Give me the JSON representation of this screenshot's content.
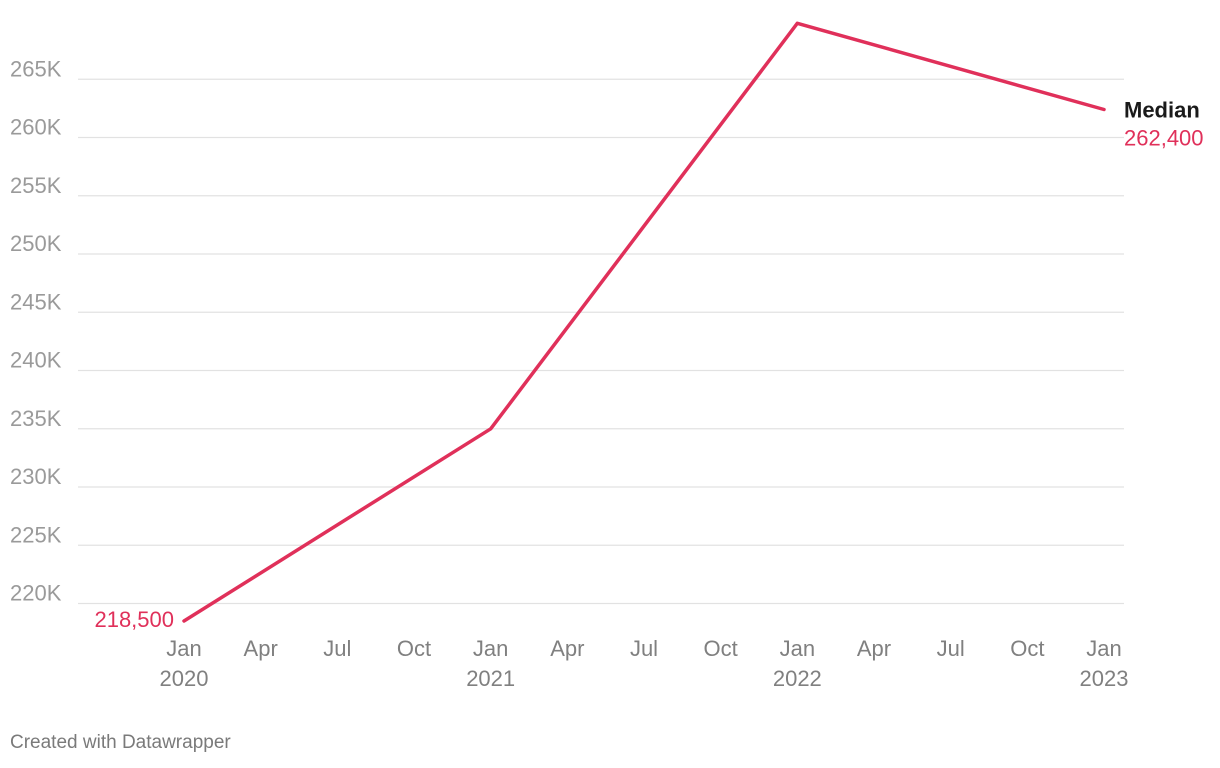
{
  "chart_data": {
    "type": "line",
    "x": [
      "2020-01",
      "2021-01",
      "2022-01",
      "2023-01"
    ],
    "series": [
      {
        "name": "Median",
        "values": [
          218500,
          235000,
          269800,
          262400
        ],
        "color": "#e0305a"
      }
    ],
    "ylim": [
      218500,
      270000
    ],
    "yticks": [
      220000,
      225000,
      230000,
      235000,
      240000,
      245000,
      250000,
      255000,
      260000,
      265000
    ],
    "ytick_labels": [
      "220K",
      "225K",
      "230K",
      "235K",
      "240K",
      "245K",
      "250K",
      "255K",
      "260K",
      "265K"
    ],
    "xticks": [
      {
        "date": "2020-01",
        "month": "Jan",
        "year": "2020"
      },
      {
        "date": "2020-04",
        "month": "Apr",
        "year": ""
      },
      {
        "date": "2020-07",
        "month": "Jul",
        "year": ""
      },
      {
        "date": "2020-10",
        "month": "Oct",
        "year": ""
      },
      {
        "date": "2021-01",
        "month": "Jan",
        "year": "2021"
      },
      {
        "date": "2021-04",
        "month": "Apr",
        "year": ""
      },
      {
        "date": "2021-07",
        "month": "Jul",
        "year": ""
      },
      {
        "date": "2021-10",
        "month": "Oct",
        "year": ""
      },
      {
        "date": "2022-01",
        "month": "Jan",
        "year": "2022"
      },
      {
        "date": "2022-04",
        "month": "Apr",
        "year": ""
      },
      {
        "date": "2022-07",
        "month": "Jul",
        "year": ""
      },
      {
        "date": "2022-10",
        "month": "Oct",
        "year": ""
      },
      {
        "date": "2023-01",
        "month": "Jan",
        "year": "2023"
      }
    ],
    "annotations": {
      "start_label": "218,500",
      "end_label": "262,400"
    },
    "grid": true,
    "legend": "inline-right"
  },
  "footer": "Created with Datawrapper"
}
